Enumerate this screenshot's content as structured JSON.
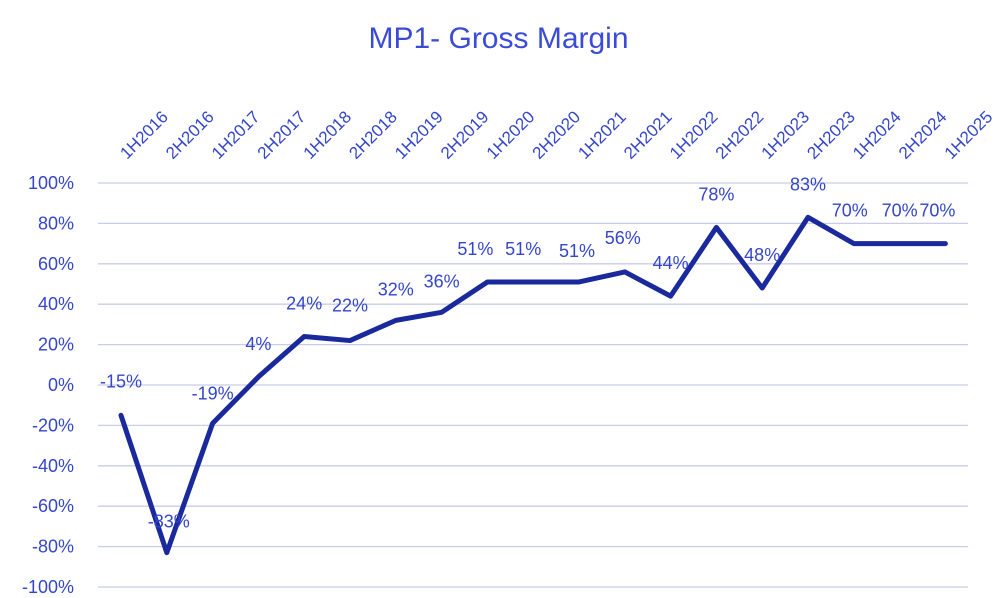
{
  "chart_data": {
    "type": "line",
    "title": "MP1- Gross Margin",
    "xlabel": "",
    "ylabel": "",
    "categories": [
      "1H2016",
      "2H2016",
      "1H2017",
      "2H2017",
      "1H2018",
      "2H2018",
      "1H2019",
      "2H2019",
      "1H2020",
      "2H2020",
      "1H2021",
      "2H2021",
      "1H2022",
      "2H2022",
      "1H2023",
      "2H2023",
      "1H2024",
      "2H2024",
      "1H2025"
    ],
    "series": [
      {
        "values": [
          -15,
          -83,
          -19,
          4,
          24,
          22,
          32,
          36,
          51,
          51,
          51,
          56,
          44,
          78,
          48,
          83,
          70,
          70,
          70
        ],
        "labels": [
          "-15%",
          "-83%",
          "-19%",
          "4%",
          "24%",
          "22%",
          "32%",
          "36%",
          "51%",
          "51%",
          "51%",
          "56%",
          "44%",
          "78%",
          "48%",
          "83%",
          "70%",
          "70%",
          "70%"
        ]
      }
    ],
    "ylim": [
      -100,
      100
    ],
    "yticks": [
      100,
      80,
      60,
      40,
      20,
      0,
      -20,
      -40,
      -60,
      -80,
      -100
    ],
    "ytick_labels": [
      "100%",
      "80%",
      "60%",
      "40%",
      "20%",
      "0%",
      "-20%",
      "-40%",
      "-60%",
      "-80%",
      "-100%"
    ],
    "grid": true,
    "legend": "none",
    "x_axis_position": "top",
    "colors": {
      "line": "#1a2a9c",
      "text": "#3446c9",
      "title": "#3a4bd8",
      "grid": "#c9cde8"
    }
  }
}
